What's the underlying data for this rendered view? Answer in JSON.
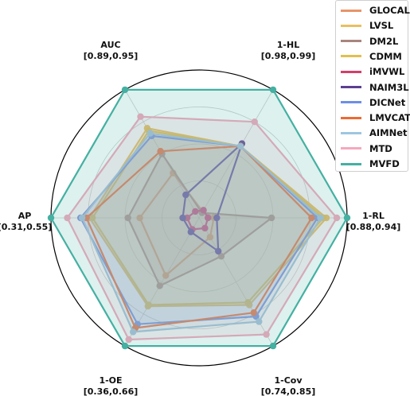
{
  "chart_data": {
    "type": "radar",
    "axes": [
      {
        "name": "1-HL",
        "range": "[0.98,0.99]"
      },
      {
        "name": "1-RL",
        "range": "[0.88,0.94]"
      },
      {
        "name": "1-Cov",
        "range": "[0.74,0.85]"
      },
      {
        "name": "1-OE",
        "range": "[0.36,0.66]"
      },
      {
        "name": "AP",
        "range": "[0.31,0.55]"
      },
      {
        "name": "AUC",
        "range": "[0.89,0.95]"
      }
    ],
    "grid": true,
    "legend_placement": "top-right",
    "series": [
      {
        "name": "GLOCAL",
        "color": "#e8946a",
        "fill": false,
        "values": [
          0.05,
          0.1,
          0.15,
          0.45,
          0.4,
          0.35
        ]
      },
      {
        "name": "LVSL",
        "color": "#e8c060",
        "fill": true,
        "values": [
          0.56,
          0.86,
          0.68,
          0.69,
          0.74,
          0.7
        ]
      },
      {
        "name": "DM2L",
        "color": "#a8857d",
        "fill": true,
        "values": [
          0.04,
          0.49,
          0.3,
          0.53,
          0.48,
          0.5
        ]
      },
      {
        "name": "CDMM",
        "color": "#e0c050",
        "fill": true,
        "values": [
          0.56,
          0.84,
          0.66,
          0.68,
          0.72,
          0.68
        ]
      },
      {
        "name": "iMVWL",
        "color": "#d43f6a",
        "fill": false,
        "values": [
          0.06,
          0.06,
          0.08,
          0.09,
          0.08,
          0.05
        ]
      },
      {
        "name": "NAIM3L",
        "color": "#5c3f8f",
        "fill": false,
        "values": [
          0.58,
          0.12,
          0.26,
          0.11,
          0.11,
          0.18
        ]
      },
      {
        "name": "DICNet",
        "color": "#6e8ee6",
        "fill": true,
        "values": [
          0.56,
          0.8,
          0.77,
          0.83,
          0.8,
          0.64
        ]
      },
      {
        "name": "LMVCAT",
        "color": "#ed6a33",
        "fill": false,
        "values": [
          0.56,
          0.76,
          0.74,
          0.86,
          0.76,
          0.52
        ]
      },
      {
        "name": "AIMNet",
        "color": "#9ec6e0",
        "fill": true,
        "values": [
          0.56,
          0.82,
          0.81,
          0.89,
          0.79,
          0.66
        ]
      },
      {
        "name": "MTD",
        "color": "#f5a8bd",
        "fill": true,
        "values": [
          0.75,
          0.93,
          0.91,
          0.95,
          0.89,
          0.79
        ]
      },
      {
        "name": "MVFD",
        "color": "#44b0a2",
        "fill": true,
        "values": [
          1.0,
          1.0,
          1.0,
          1.0,
          1.0,
          1.0
        ]
      }
    ]
  }
}
